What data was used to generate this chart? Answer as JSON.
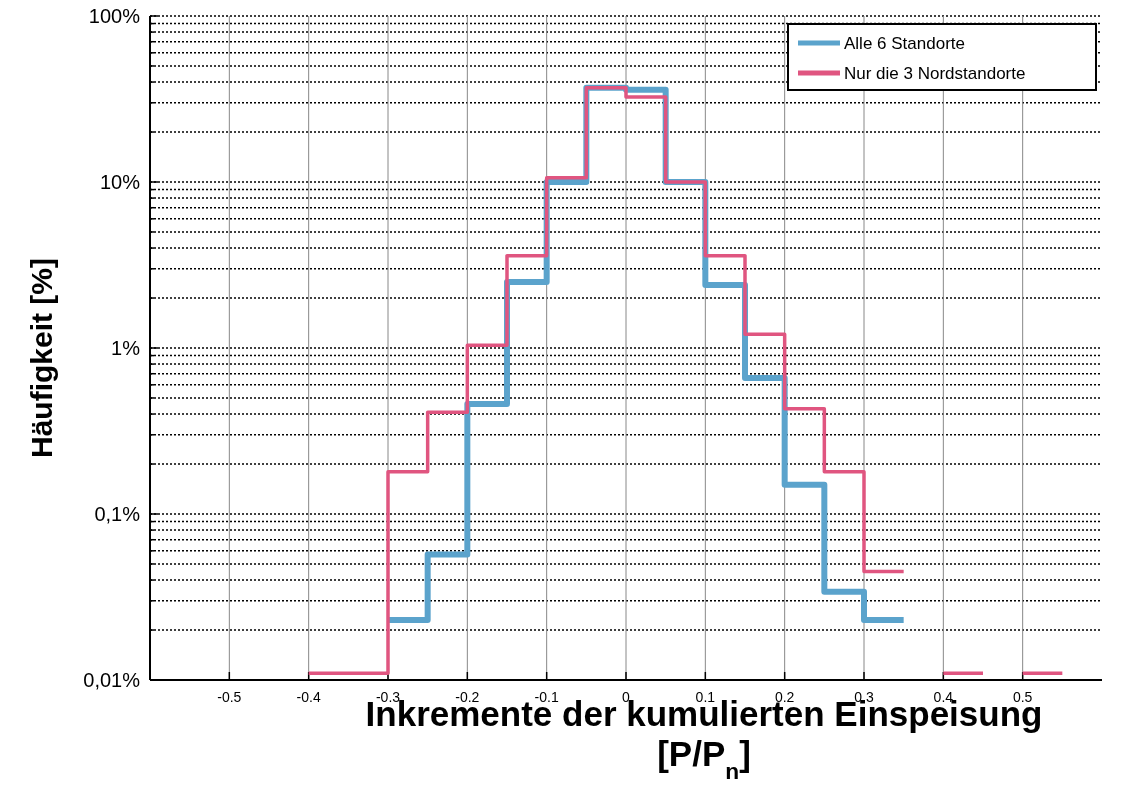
{
  "chart_data": {
    "type": "step",
    "xlabel": "Inkremente der kumulierten Einspeisung [P/P$_{n}$]",
    "ylabel": "Häufigkeit [%]",
    "series": [
      {
        "name": "Alle 6 Standorte",
        "color": "#5ba3cc",
        "x": [
          -0.3,
          -0.25,
          -0.2,
          -0.15,
          -0.1,
          -0.05,
          0,
          0.05,
          0.1,
          0.15,
          0.2,
          0.25,
          0.3,
          0.35
        ],
        "values": [
          0.023,
          0.057,
          0.46,
          2.5,
          10,
          37,
          36,
          10,
          2.4,
          0.66,
          0.15,
          0.034,
          0.023,
          0.023
        ]
      },
      {
        "name": "Nur die 3 Nordstandorte",
        "color": "#e05580",
        "x": [
          -0.4,
          -0.3,
          -0.25,
          -0.2,
          -0.15,
          -0.1,
          -0.05,
          0,
          0.05,
          0.1,
          0.15,
          0.2,
          0.25,
          0.3,
          0.35
        ],
        "values": [
          0.011,
          0.18,
          0.41,
          1.04,
          3.6,
          10.6,
          37,
          32.5,
          10,
          3.6,
          1.21,
          0.43,
          0.18,
          0.045,
          0.045
        ]
      },
      {
        "color": "#e05580",
        "x": [
          0.4,
          0.45
        ],
        "values": [
          0.011,
          0.011
        ]
      },
      {
        "color": "#e05580",
        "x": [
          0.5,
          0.55
        ],
        "values": [
          0.011,
          0.011
        ]
      }
    ],
    "log": "y",
    "xlim": [
      -0.6,
      0.6
    ],
    "xticks": [
      {
        "value": -0.5,
        "label": "-0.5"
      },
      {
        "value": -0.4,
        "label": "-0.4"
      },
      {
        "value": -0.3,
        "label": "-0.3"
      },
      {
        "value": -0.2,
        "label": "-0.2"
      },
      {
        "value": -0.1,
        "label": "-0.1"
      },
      0,
      {
        "value": 0.1,
        "label": "0.1"
      },
      {
        "value": 0.2,
        "label": "0.2"
      },
      {
        "value": 0.3,
        "label": "0.3"
      },
      {
        "value": 0.4,
        "label": "0.4"
      },
      {
        "value": 0.5,
        "label": "0.5"
      }
    ],
    "ylim": [
      0.01,
      100
    ],
    "yticks": [
      {
        "value": 0.01,
        "label": "0,01%"
      },
      {
        "value": 0.02,
        "label": null
      },
      {
        "value": 0.03,
        "label": null
      },
      {
        "value": 0.04,
        "label": null
      },
      {
        "value": 0.05,
        "label": null
      },
      {
        "value": 0.06,
        "label": null
      },
      {
        "value": 0.07,
        "label": null
      },
      {
        "value": 0.08,
        "label": null
      },
      {
        "value": 0.09,
        "label": null
      },
      {
        "value": 0.1,
        "label": "0,1%"
      },
      {
        "value": 0.2,
        "label": null
      },
      {
        "value": 0.3,
        "label": null
      },
      {
        "value": 0.4,
        "label": null
      },
      {
        "value": 0.5,
        "label": null
      },
      {
        "value": 0.6,
        "label": null
      },
      {
        "value": 0.7,
        "label": null
      },
      {
        "value": 0.8,
        "label": null
      },
      {
        "value": 0.9,
        "label": null
      },
      {
        "value": 1,
        "label": "1%"
      },
      {
        "value": 2,
        "label": null
      },
      {
        "value": 3,
        "label": null
      },
      {
        "value": 4,
        "label": null
      },
      {
        "value": 5,
        "label": null
      },
      {
        "value": 6,
        "label": null
      },
      {
        "value": 7,
        "label": null
      },
      {
        "value": 8,
        "label": null
      },
      {
        "value": 9,
        "label": null
      },
      {
        "value": 10,
        "label": "10%"
      },
      {
        "value": 20,
        "label": null
      },
      {
        "value": 30,
        "label": null
      },
      {
        "value": 40,
        "label": null
      },
      {
        "value": 50,
        "label": null
      },
      {
        "value": 60,
        "label": null
      },
      {
        "value": 70,
        "label": null
      },
      {
        "value": 80,
        "label": null
      },
      {
        "value": 90,
        "label": null
      },
      {
        "value": 100,
        "label": "100%"
      }
    ],
    "grid": true,
    "legend": "top right"
  }
}
